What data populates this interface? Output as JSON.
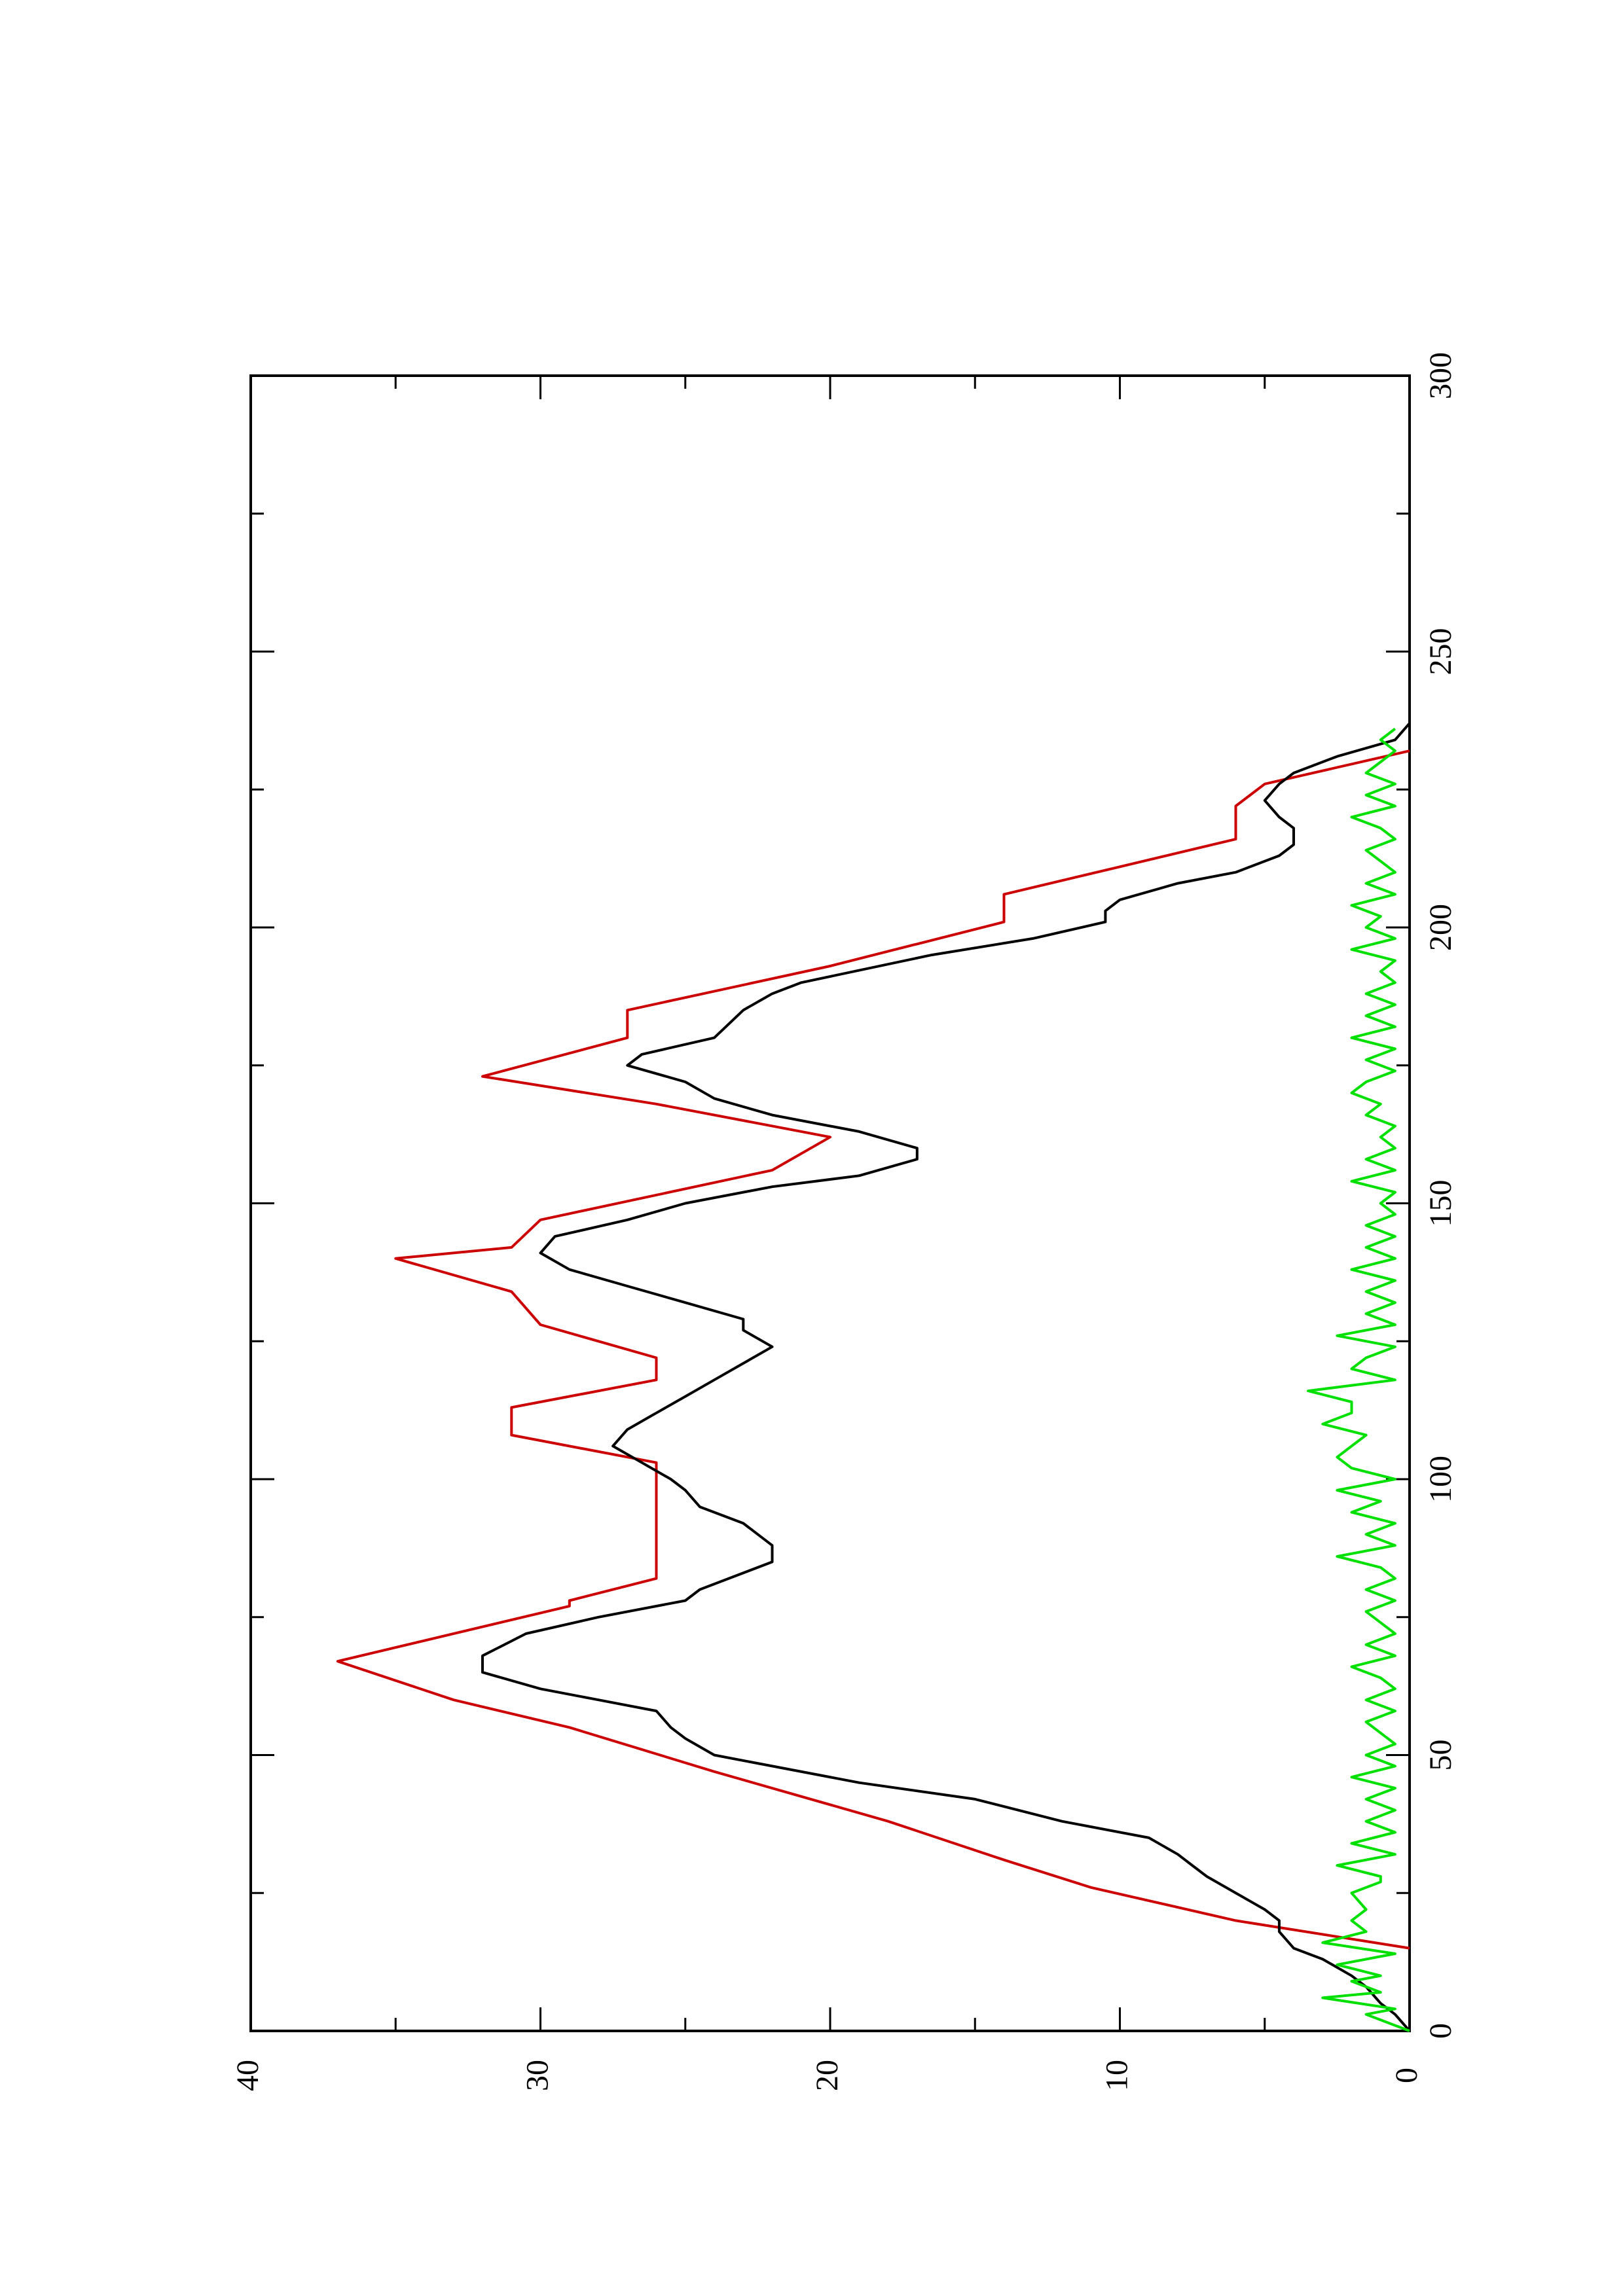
{
  "chart_data": {
    "type": "line",
    "orientation": "rotated-90-ccw",
    "title": "",
    "xlabel": "",
    "ylabel": "",
    "xlim": [
      0,
      300
    ],
    "ylim": [
      0,
      40
    ],
    "x_ticks": [
      "0",
      "50",
      "100",
      "150",
      "200",
      "250",
      "300"
    ],
    "y_ticks": [
      "0",
      "10",
      "20",
      "30",
      "40"
    ],
    "grid": false,
    "legend": "none",
    "series": [
      {
        "color": "#cc0000",
        "x": [
          15,
          20,
          26,
          31,
          38,
          47,
          55,
          60,
          67,
          77,
          78,
          82,
          97,
          103,
          108,
          113,
          118,
          122,
          128,
          134,
          140,
          142,
          147,
          156,
          162,
          168,
          173,
          180,
          185,
          193,
          201,
          206,
          211,
          216,
          222,
          226,
          232
        ],
        "y": [
          0,
          6,
          11,
          14,
          18,
          24,
          29,
          33,
          37,
          29,
          29,
          26,
          26,
          26,
          31,
          31,
          26,
          26,
          30,
          31,
          35,
          31,
          30,
          22,
          20,
          26,
          32,
          27,
          27,
          20,
          14,
          14,
          10,
          6,
          6,
          5,
          0
        ]
      },
      {
        "color": "#000000",
        "x": [
          0,
          3,
          5,
          8,
          10,
          13,
          15,
          18,
          20,
          22,
          25,
          28,
          30,
          32,
          35,
          38,
          42,
          45,
          48,
          50,
          53,
          55,
          58,
          60,
          62,
          65,
          68,
          72,
          75,
          78,
          80,
          85,
          88,
          92,
          95,
          98,
          100,
          103,
          106,
          109,
          112,
          115,
          118,
          121,
          124,
          127,
          129,
          132,
          135,
          138,
          141,
          144,
          147,
          150,
          153,
          155,
          158,
          160,
          163,
          166,
          169,
          172,
          175,
          177,
          180,
          185,
          188,
          190,
          195,
          198,
          201,
          203,
          205,
          208,
          210,
          213,
          215,
          218,
          220,
          223,
          226,
          228,
          231,
          234,
          237
        ],
        "y": [
          0,
          0.5,
          1,
          1.5,
          2,
          3,
          4,
          4.5,
          4.5,
          5,
          6,
          7,
          7.5,
          8,
          9,
          12,
          15,
          19,
          22,
          24,
          25,
          25.5,
          26,
          28,
          30,
          32,
          32,
          30.5,
          28,
          25,
          24.5,
          22,
          22,
          23,
          24.5,
          25,
          25.5,
          26.5,
          27.5,
          27,
          26,
          25,
          24,
          23,
          22,
          23,
          23,
          25,
          27,
          29,
          30,
          29.5,
          27,
          25,
          22,
          19,
          17,
          17,
          19,
          22,
          24,
          25,
          27,
          26.5,
          24,
          23,
          22,
          21,
          16.5,
          13,
          10.5,
          10.5,
          10,
          8,
          6,
          4.5,
          4,
          4,
          4.5,
          5,
          4.5,
          4,
          2.5,
          0.5,
          0
        ]
      },
      {
        "color": "#00e000",
        "x": [
          0,
          3,
          4,
          6,
          7,
          9,
          10,
          12,
          14,
          16,
          18,
          20,
          22,
          25,
          27,
          28,
          30,
          32,
          34,
          36,
          38,
          40,
          42,
          44,
          46,
          48,
          50,
          52,
          54,
          56,
          58,
          60,
          62,
          64,
          66,
          68,
          70,
          72,
          74,
          76,
          78,
          80,
          82,
          84,
          86,
          88,
          90,
          92,
          94,
          96,
          98,
          100,
          102,
          104,
          106,
          108,
          110,
          112,
          114,
          116,
          118,
          120,
          122,
          124,
          126,
          128,
          130,
          132,
          134,
          136,
          138,
          140,
          142,
          144,
          146,
          148,
          150,
          152,
          154,
          156,
          158,
          160,
          162,
          164,
          166,
          168,
          170,
          172,
          174,
          176,
          178,
          180,
          182,
          184,
          186,
          188,
          190,
          192,
          194,
          196,
          198,
          200,
          202,
          204,
          206,
          208,
          210,
          212,
          214,
          216,
          218,
          220,
          222,
          224,
          226,
          228,
          230,
          232,
          234,
          236
        ],
        "y": [
          0,
          1.5,
          0.5,
          3,
          1,
          2,
          1,
          2.5,
          0.5,
          3,
          1.5,
          2,
          1.5,
          2,
          1,
          1,
          2.5,
          0.5,
          2,
          0.5,
          1.5,
          0.5,
          1.5,
          0.5,
          2,
          0.5,
          1.5,
          0.5,
          1,
          1.5,
          0.5,
          1.5,
          0.5,
          1,
          2,
          0.5,
          1.5,
          0.5,
          1,
          1.5,
          0.5,
          1.5,
          0.5,
          1,
          2.5,
          0.5,
          1.5,
          0.5,
          2,
          1,
          2.5,
          0.5,
          2,
          2.5,
          2,
          1.5,
          3,
          2,
          2,
          3.5,
          0.5,
          2,
          1.5,
          0.5,
          2.5,
          0.5,
          1.5,
          0.5,
          1.5,
          0.5,
          2,
          0.5,
          1.5,
          0.5,
          1.5,
          0.5,
          1,
          0.5,
          2,
          0.5,
          1.5,
          0.5,
          1,
          0.5,
          1.5,
          1,
          2,
          1.5,
          0.5,
          1.5,
          0.5,
          2,
          0.5,
          1.5,
          0.5,
          1.5,
          0.5,
          1,
          0.5,
          2,
          0.5,
          1.5,
          1,
          2,
          0.5,
          1.5,
          0.5,
          1,
          1.5,
          0.5,
          1,
          2,
          0.5,
          1.5,
          0.5,
          1.5,
          1,
          0.5,
          1,
          0.5
        ]
      }
    ]
  }
}
